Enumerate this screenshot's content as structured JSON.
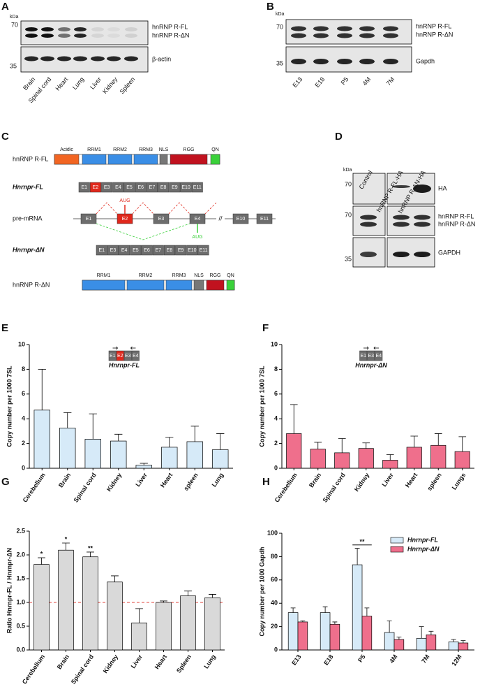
{
  "panel_a": {
    "letter": "A",
    "kda": "kDa",
    "markers": [
      "70",
      "35"
    ],
    "bands": [
      "hnRNP R-FL",
      "hnRNP R-ΔN",
      "β-actin"
    ],
    "lanes": [
      "Brain",
      "Spinal cord",
      "Heart",
      "Lung",
      "Liver",
      "Kidney",
      "Spleen"
    ]
  },
  "panel_b": {
    "letter": "B",
    "kda": "kDa",
    "markers": [
      "70",
      "35"
    ],
    "bands": [
      "hnRNP R-FL",
      "hnRNP R-ΔN",
      "Gapdh"
    ],
    "lanes": [
      "E13",
      "E18",
      "P5",
      "4M",
      "7M"
    ]
  },
  "panel_c": {
    "letter": "C",
    "protein_fl": {
      "label": "hnRNP R-FL",
      "domains": [
        "Acidic",
        "RRM1",
        "RRM2",
        "RRM3",
        "NLS",
        "RGG",
        "QN"
      ]
    },
    "gene_fl": {
      "label": "Hnrnpr-FL",
      "exons": [
        "E1",
        "E2",
        "E3",
        "E4",
        "E5",
        "E6",
        "E7",
        "E8",
        "E9",
        "E10",
        "E11"
      ]
    },
    "pre_mrna": {
      "label": "pre-mRNA",
      "exons": [
        "E1",
        "E2",
        "E3",
        "E4",
        "E10",
        "E11"
      ],
      "break": "//",
      "aug": [
        "AUG",
        "AUG"
      ]
    },
    "gene_dn": {
      "label": "Hnrnpr-ΔN",
      "exons": [
        "E1",
        "E3",
        "E4",
        "E5",
        "E6",
        "E7",
        "E8",
        "E9",
        "E10",
        "E11"
      ]
    },
    "protein_dn": {
      "label": "hnRNP R-ΔN",
      "domains": [
        "RRM1",
        "RRM2",
        "RRM3",
        "NLS",
        "RGG",
        "QN"
      ]
    }
  },
  "panel_d": {
    "letter": "D",
    "kda": "kDa",
    "markers": [
      "70",
      "70",
      "35"
    ],
    "bands": [
      "HA",
      "hnRNP R-FL",
      "hnRNP R-ΔN",
      "GAPDH"
    ],
    "lanes": [
      "Control",
      "hnRNP R-FL-HA",
      "hnRNP R-ΔN-HA"
    ]
  },
  "chart_data": [
    {
      "type": "bar",
      "panel": "E",
      "y_label": "Copy number per 1000 7SL",
      "categories": [
        "Cerebellum",
        "Brain",
        "Spinal cord",
        "Kidney",
        "Liver",
        "Heart",
        "spleen",
        "Lung"
      ],
      "values": [
        4.7,
        3.25,
        2.35,
        2.2,
        0.25,
        1.7,
        2.15,
        1.5
      ],
      "errors": [
        3.3,
        1.25,
        2.05,
        0.55,
        0.15,
        0.8,
        1.25,
        1.3
      ],
      "color": "#d6eaf8",
      "ylim": [
        0,
        10
      ],
      "yticks": [
        0,
        2,
        4,
        6,
        8,
        10
      ],
      "inset": {
        "exons": [
          "E1",
          "E2",
          "E3",
          "E4"
        ],
        "label": "Hnrnpr-FL"
      }
    },
    {
      "type": "bar",
      "panel": "F",
      "y_label": "Copy number per 1000 7SL",
      "categories": [
        "Cerebellum",
        "Brain",
        "Spinal cord",
        "Kidney",
        "Liver",
        "Heart",
        "spleen",
        "Lungs"
      ],
      "values": [
        2.8,
        1.55,
        1.25,
        1.6,
        0.65,
        1.7,
        1.85,
        1.35
      ],
      "errors": [
        2.35,
        0.55,
        1.15,
        0.45,
        0.45,
        0.9,
        0.95,
        1.2
      ],
      "color": "#ef6f8c",
      "ylim": [
        0,
        10
      ],
      "yticks": [
        0,
        2,
        4,
        6,
        8,
        10
      ],
      "inset": {
        "exons": [
          "E1",
          "E3",
          "E4"
        ],
        "label": "Hnrnpr-ΔN"
      }
    },
    {
      "type": "bar",
      "panel": "G",
      "y_label": "Ratio Hnrnpr-FL / Hnrnpr-ΔN",
      "categories": [
        "Cerebellum",
        "Brain",
        "Spinal cord",
        "Kidney",
        "Liver",
        "Heart",
        "Spleen",
        "Lung"
      ],
      "values": [
        1.8,
        2.1,
        1.96,
        1.43,
        0.57,
        1.0,
        1.14,
        1.1
      ],
      "errors": [
        0.14,
        0.15,
        0.1,
        0.13,
        0.3,
        0.03,
        0.1,
        0.07
      ],
      "significance": [
        "*",
        "*",
        "**",
        null,
        null,
        null,
        null,
        null
      ],
      "color": "#d9d9d9",
      "reference_line": 1,
      "reference_color": "#e0403a",
      "ylim": [
        0,
        2.5
      ],
      "yticks": [
        {
          "value": 0,
          "label": "0.0"
        },
        0.5,
        {
          "value": 1,
          "label": "1.0"
        },
        1.5,
        {
          "value": 2,
          "label": "2.0"
        },
        2.5
      ]
    },
    {
      "type": "bar",
      "panel": "H",
      "y_label": "Copy number per 1000 Gapdh",
      "categories": [
        "E13",
        "E18",
        "P5",
        "4M",
        "7M",
        "12M"
      ],
      "series": [
        {
          "name": "Hnrnpr-FL",
          "color": "#d6eaf8",
          "values": [
            32,
            32,
            73,
            15,
            10,
            7
          ],
          "errors": [
            4,
            5,
            14,
            10,
            10,
            2
          ]
        },
        {
          "name": "Hnrnpr-ΔN",
          "color": "#ef6f8c",
          "values": [
            24,
            22,
            29,
            9,
            13,
            6
          ],
          "errors": [
            1,
            2,
            7,
            2,
            3,
            2
          ]
        }
      ],
      "significance": [
        null,
        null,
        "**",
        null,
        null,
        null
      ],
      "ylim": [
        0,
        100
      ],
      "yticks": [
        0,
        20,
        40,
        60,
        80,
        100
      ],
      "legend": "top-right"
    }
  ]
}
